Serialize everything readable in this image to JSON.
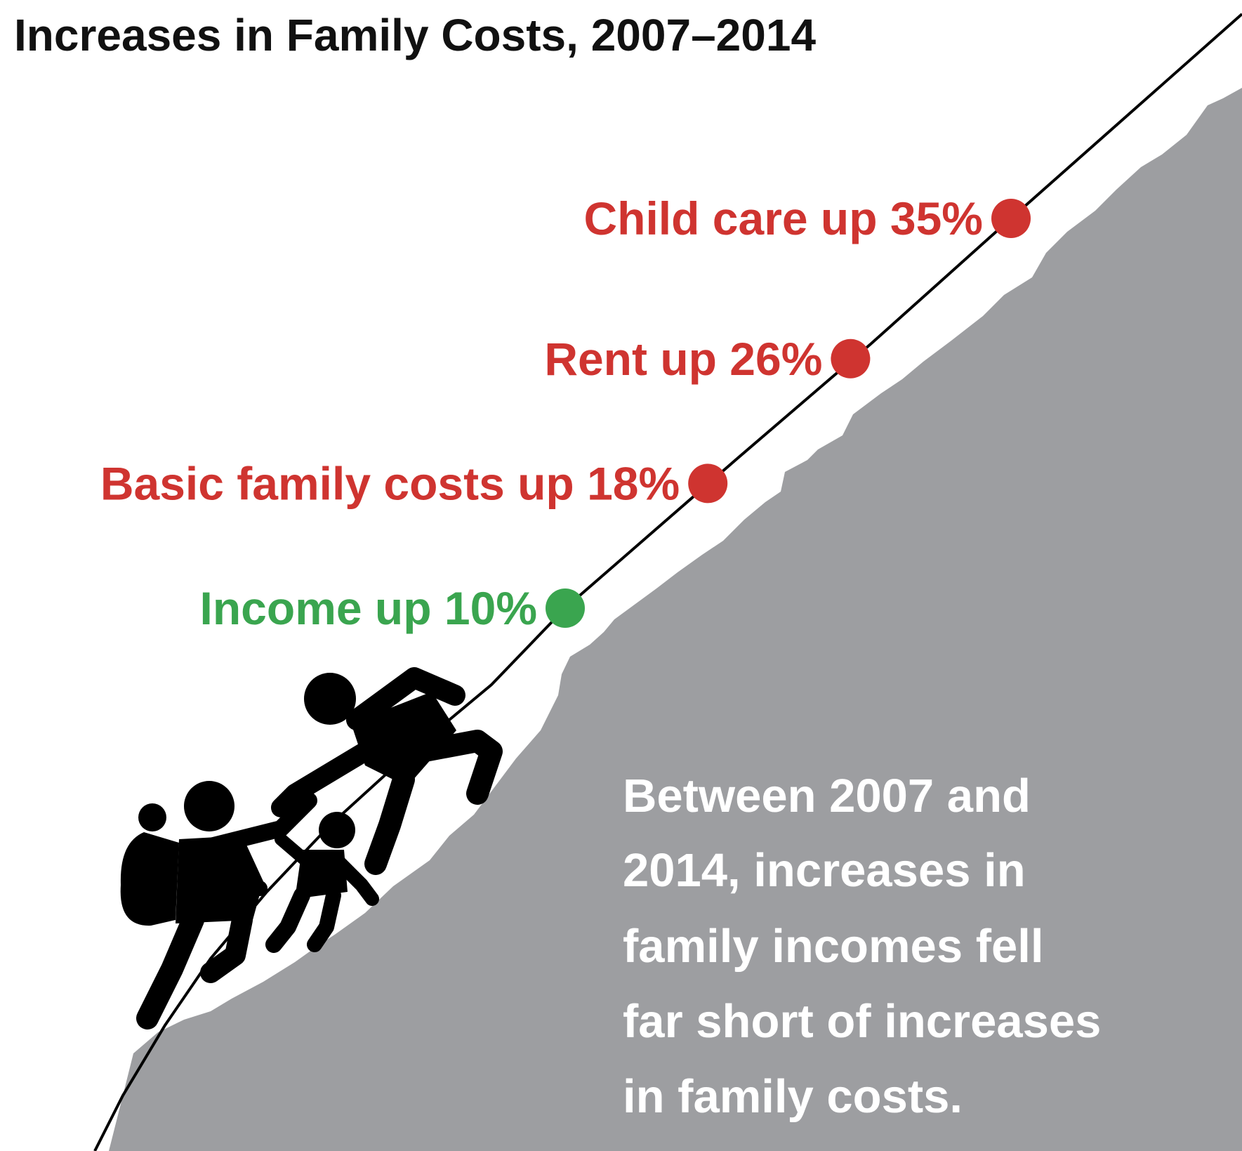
{
  "title": "Increases in Family Costs, 2007–2014",
  "colors": {
    "cost": "#cf3430",
    "income": "#3aa54f",
    "mountain": "#9d9ea1",
    "climbers": "#000000",
    "text_on_mountain": "#ffffff"
  },
  "chart_data": {
    "type": "scatter",
    "title": "Increases in Family Costs, 2007–2014",
    "xlabel": "",
    "ylabel": "",
    "unit": "%",
    "points": [
      {
        "label": "Income up 10%",
        "category": "Income",
        "value": 10,
        "color": "#3aa54f"
      },
      {
        "label": "Basic family costs up 18%",
        "category": "Basic family costs",
        "value": 18,
        "color": "#cf3430"
      },
      {
        "label": "Rent up 26%",
        "category": "Rent",
        "value": 26,
        "color": "#cf3430"
      },
      {
        "label": "Child care up 35%",
        "category": "Child care",
        "value": 35,
        "color": "#cf3430"
      }
    ]
  },
  "caption": {
    "lines": [
      "Between 2007 and",
      "2014, increases in",
      "family incomes fell",
      "far short of increases",
      "in family costs."
    ]
  },
  "illustration": {
    "icon": "family-climbing-mountain-icon"
  }
}
